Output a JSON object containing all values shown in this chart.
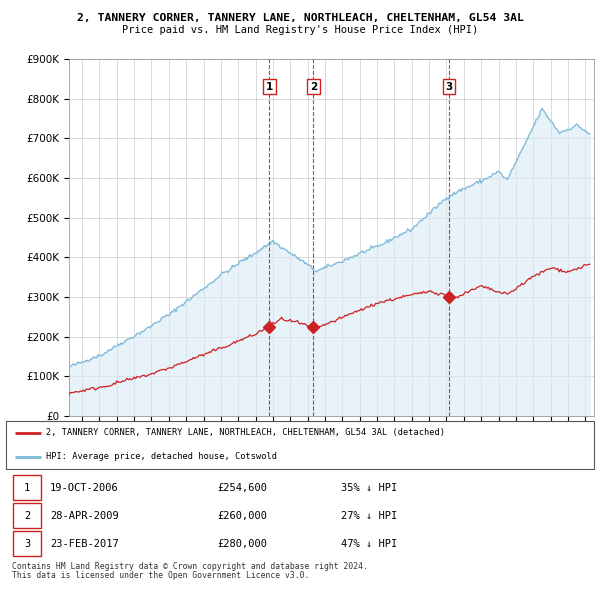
{
  "title1": "2, TANNERY CORNER, TANNERY LANE, NORTHLEACH, CHELTENHAM, GL54 3AL",
  "title2": "Price paid vs. HM Land Registry's House Price Index (HPI)",
  "ylim": [
    0,
    900000
  ],
  "xlim_start": 1995.25,
  "xlim_end": 2025.5,
  "hpi_color": "#7ab8d9",
  "hpi_fill_color": "#daeaf5",
  "price_color": "#cc2222",
  "vline_color": "#cc2222",
  "transactions": [
    {
      "label": "1",
      "date_num": 2006.8,
      "price": 254600,
      "date_str": "19-OCT-2006",
      "pct": "35% ↓ HPI"
    },
    {
      "label": "2",
      "date_num": 2009.33,
      "price": 260000,
      "date_str": "28-APR-2009",
      "pct": "27% ↓ HPI"
    },
    {
      "label": "3",
      "date_num": 2017.15,
      "price": 280000,
      "date_str": "23-FEB-2017",
      "pct": "47% ↓ HPI"
    }
  ],
  "legend_label_price": "2, TANNERY CORNER, TANNERY LANE, NORTHLEACH, CHELTENHAM, GL54 3AL (detached)",
  "legend_label_hpi": "HPI: Average price, detached house, Cotswold",
  "footnote1": "Contains HM Land Registry data © Crown copyright and database right 2024.",
  "footnote2": "This data is licensed under the Open Government Licence v3.0.",
  "table_rows": [
    [
      "1",
      "19-OCT-2006",
      "£254,600",
      "35% ↓ HPI"
    ],
    [
      "2",
      "28-APR-2009",
      "£260,000",
      "27% ↓ HPI"
    ],
    [
      "3",
      "23-FEB-2017",
      "£280,000",
      "47% ↓ HPI"
    ]
  ]
}
